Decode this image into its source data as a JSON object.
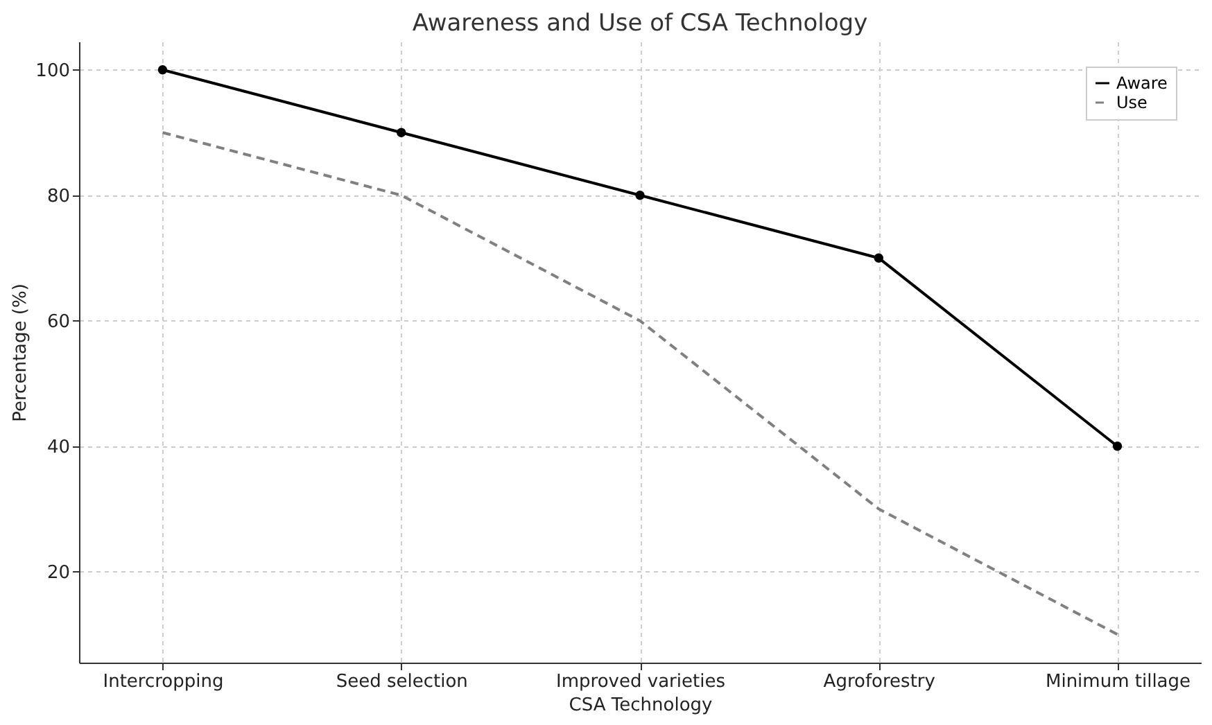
{
  "chart_data": {
    "type": "line",
    "title": "Awareness and Use of CSA Technology",
    "xlabel": "CSA Technology",
    "ylabel": "Percentage (%)",
    "categories": [
      "Intercropping",
      "Seed selection",
      "Improved varieties",
      "Agroforestry",
      "Minimum tillage"
    ],
    "series": [
      {
        "name": "Aware",
        "color": "#000000",
        "values": [
          100,
          90,
          80,
          70,
          40
        ],
        "marker": "circle",
        "line_style": "solid"
      },
      {
        "name": "Use",
        "color": "#808080",
        "values": [
          90,
          80,
          60,
          30,
          10
        ],
        "marker": "none",
        "line_style": "dashed"
      }
    ],
    "ylim": [
      5.5,
      104.5
    ],
    "yticks": [
      20,
      40,
      60,
      80,
      100
    ],
    "grid": true,
    "legend": "top right"
  }
}
